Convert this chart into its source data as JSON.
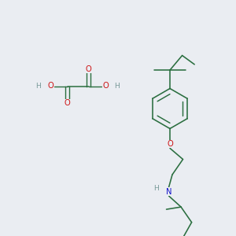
{
  "background_color": "#eaedf2",
  "bond_color": "#2a6e3f",
  "O_color": "#cc1111",
  "N_color": "#1111cc",
  "H_color": "#7a9a9a",
  "figsize": [
    3.0,
    3.0
  ],
  "dpi": 100,
  "xlim": [
    0,
    10
  ],
  "ylim": [
    0,
    10
  ]
}
